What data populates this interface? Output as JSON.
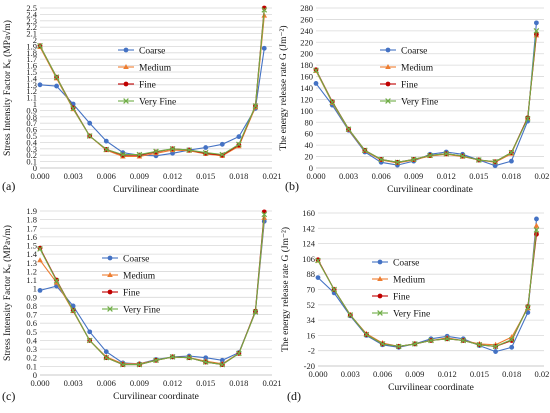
{
  "colors": {
    "Coarse": "#4472c4",
    "Medium": "#ed7d31",
    "Fine": "#c00000",
    "Very Fine": "#70ad47",
    "grid": "#d9d9d9"
  },
  "chart_data": [
    {
      "type": "line",
      "panel_label": "(a)",
      "xlabel": "Curvilinear coordinate",
      "ylabel": "Stress Intensity Factor Kₑ (MPa√m)",
      "xlim": [
        0,
        0.021
      ],
      "ylim": [
        0,
        2.5
      ],
      "xticks": [
        "0.000",
        "0.003",
        "0.006",
        "0.009",
        "0.012",
        "0.015",
        "0.018",
        "0.021"
      ],
      "yticks": [
        "0",
        "0.1",
        "0.2",
        "0.3",
        "0.4",
        "0.5",
        "0.6",
        "0.7",
        "0.8",
        "0.9",
        "1",
        "1.1",
        "1.2",
        "1.3",
        "1.4",
        "1.5",
        "1.6",
        "1.7",
        "1.8",
        "1.9",
        "2",
        "2.1",
        "2.2",
        "2.3",
        "2.4",
        "2.5"
      ],
      "grid": "horizontal",
      "legend_position": "center-right",
      "series": [
        {
          "name": "Coarse",
          "x": [
            0.0,
            0.0015,
            0.003,
            0.0045,
            0.006,
            0.0075,
            0.009,
            0.0105,
            0.012,
            0.0135,
            0.015,
            0.0165,
            0.018,
            0.0195,
            0.0203
          ],
          "values": [
            1.3,
            1.28,
            1.0,
            0.7,
            0.42,
            0.24,
            0.2,
            0.19,
            0.23,
            0.28,
            0.32,
            0.37,
            0.49,
            0.93,
            1.87
          ]
        },
        {
          "name": "Medium",
          "x": [
            0.0,
            0.0015,
            0.003,
            0.0045,
            0.006,
            0.0075,
            0.009,
            0.0105,
            0.012,
            0.0135,
            0.015,
            0.0165,
            0.018,
            0.0195,
            0.0203
          ],
          "values": [
            1.89,
            1.4,
            0.92,
            0.5,
            0.28,
            0.18,
            0.18,
            0.23,
            0.28,
            0.27,
            0.22,
            0.19,
            0.34,
            0.95,
            2.38
          ]
        },
        {
          "name": "Fine",
          "x": [
            0.0,
            0.0015,
            0.003,
            0.0045,
            0.006,
            0.0075,
            0.009,
            0.0105,
            0.012,
            0.0135,
            0.015,
            0.0165,
            0.018,
            0.0195,
            0.0203
          ],
          "values": [
            1.91,
            1.42,
            0.94,
            0.5,
            0.29,
            0.2,
            0.2,
            0.25,
            0.3,
            0.28,
            0.23,
            0.2,
            0.36,
            0.97,
            2.5
          ]
        },
        {
          "name": "Very Fine",
          "x": [
            0.0,
            0.0015,
            0.003,
            0.0045,
            0.006,
            0.0075,
            0.009,
            0.0105,
            0.012,
            0.0135,
            0.015,
            0.0165,
            0.018,
            0.0195,
            0.0203
          ],
          "values": [
            1.91,
            1.42,
            0.93,
            0.5,
            0.29,
            0.21,
            0.21,
            0.26,
            0.3,
            0.28,
            0.24,
            0.21,
            0.37,
            0.97,
            2.47
          ]
        }
      ]
    },
    {
      "type": "line",
      "panel_label": "(b)",
      "xlabel": "Curvilinear coordinate",
      "ylabel": "The energy release rate G (Jm⁻²)",
      "xlim": [
        0,
        0.021
      ],
      "ylim": [
        0,
        280
      ],
      "xticks": [
        "0.000",
        "0.003",
        "0.006",
        "0.009",
        "0.012",
        "0.015",
        "0.018",
        "0.021"
      ],
      "yticks": [
        "0",
        "20",
        "40",
        "60",
        "80",
        "100",
        "120",
        "140",
        "160",
        "180",
        "200",
        "220",
        "240",
        "260",
        "280"
      ],
      "grid": "horizontal",
      "legend_position": "top-center",
      "series": [
        {
          "name": "Coarse",
          "x": [
            0.0,
            0.0015,
            0.003,
            0.0045,
            0.006,
            0.0075,
            0.009,
            0.0105,
            0.012,
            0.0135,
            0.015,
            0.0165,
            0.018,
            0.0195,
            0.0203
          ],
          "values": [
            148,
            110,
            66,
            28,
            10,
            5,
            12,
            24,
            28,
            24,
            14,
            4,
            12,
            82,
            254
          ]
        },
        {
          "name": "Medium",
          "x": [
            0.0,
            0.0015,
            0.003,
            0.0045,
            0.006,
            0.0075,
            0.009,
            0.0105,
            0.012,
            0.0135,
            0.015,
            0.0165,
            0.018,
            0.0195,
            0.0203
          ],
          "values": [
            170,
            114,
            67,
            30,
            14,
            9,
            14,
            21,
            24,
            20,
            14,
            10,
            25,
            88,
            232
          ]
        },
        {
          "name": "Fine",
          "x": [
            0.0,
            0.0015,
            0.003,
            0.0045,
            0.006,
            0.0075,
            0.009,
            0.0105,
            0.012,
            0.0135,
            0.015,
            0.0165,
            0.018,
            0.0195,
            0.0203
          ],
          "values": [
            172,
            116,
            68,
            31,
            15,
            10,
            15,
            22,
            25,
            21,
            14,
            11,
            27,
            88,
            234
          ]
        },
        {
          "name": "Very Fine",
          "x": [
            0.0,
            0.0015,
            0.003,
            0.0045,
            0.006,
            0.0075,
            0.009,
            0.0105,
            0.012,
            0.0135,
            0.015,
            0.0165,
            0.018,
            0.0195,
            0.0203
          ],
          "values": [
            171,
            115,
            68,
            31,
            15,
            10,
            15,
            22,
            25,
            21,
            14,
            11,
            27,
            86,
            240
          ]
        }
      ]
    },
    {
      "type": "line",
      "panel_label": "(c)",
      "xlabel": "Curvilinear coordinate",
      "ylabel": "Stress Intensity Factor Kₑ (MPa√m)",
      "xlim": [
        0,
        0.021
      ],
      "ylim": [
        0,
        1.9
      ],
      "xticks": [
        "0.000",
        "0.003",
        "0.006",
        "0.009",
        "0.012",
        "0.015",
        "0.018",
        "0.021"
      ],
      "yticks": [
        "0",
        "0.1",
        "0.2",
        "0.3",
        "0.4",
        "0.5",
        "0.6",
        "0.7",
        "0.8",
        "0.9",
        "1",
        "1.1",
        "1.2",
        "1.3",
        "1.4",
        "1.5",
        "1.6",
        "1.7",
        "1.8",
        "1.9"
      ],
      "grid": "horizontal",
      "legend_position": "top-center",
      "series": [
        {
          "name": "Coarse",
          "x": [
            0.0,
            0.0015,
            0.003,
            0.0045,
            0.006,
            0.0075,
            0.009,
            0.0105,
            0.012,
            0.0135,
            0.015,
            0.0165,
            0.018,
            0.0195,
            0.0203
          ],
          "values": [
            0.98,
            1.03,
            0.8,
            0.5,
            0.27,
            0.14,
            0.13,
            0.18,
            0.21,
            0.22,
            0.2,
            0.17,
            0.26,
            0.73,
            1.78
          ]
        },
        {
          "name": "Medium",
          "x": [
            0.0,
            0.0015,
            0.003,
            0.0045,
            0.006,
            0.0075,
            0.009,
            0.0105,
            0.012,
            0.0135,
            0.015,
            0.0165,
            0.018,
            0.0195,
            0.0203
          ],
          "values": [
            1.33,
            1.07,
            0.74,
            0.4,
            0.21,
            0.13,
            0.13,
            0.17,
            0.21,
            0.2,
            0.16,
            0.13,
            0.25,
            0.73,
            1.82
          ]
        },
        {
          "name": "Fine",
          "x": [
            0.0,
            0.0015,
            0.003,
            0.0045,
            0.006,
            0.0075,
            0.009,
            0.0105,
            0.012,
            0.0135,
            0.015,
            0.0165,
            0.018,
            0.0195,
            0.0203
          ],
          "values": [
            1.47,
            1.1,
            0.75,
            0.4,
            0.2,
            0.12,
            0.12,
            0.17,
            0.21,
            0.2,
            0.15,
            0.12,
            0.25,
            0.74,
            1.89
          ]
        },
        {
          "name": "Very Fine",
          "x": [
            0.0,
            0.0015,
            0.003,
            0.0045,
            0.006,
            0.0075,
            0.009,
            0.0105,
            0.012,
            0.0135,
            0.015,
            0.0165,
            0.018,
            0.0195,
            0.0203
          ],
          "values": [
            1.46,
            1.09,
            0.75,
            0.4,
            0.2,
            0.12,
            0.12,
            0.17,
            0.21,
            0.2,
            0.15,
            0.12,
            0.25,
            0.73,
            1.86
          ]
        }
      ]
    },
    {
      "type": "line",
      "panel_label": "(d)",
      "xlabel": "Curvilinear coordinate",
      "ylabel": "The energy release rate G (Jm⁻²)",
      "xlim": [
        0,
        0.021
      ],
      "ylim": [
        -20,
        160
      ],
      "xticks": [
        "0.000",
        "0.003",
        "0.006",
        "0.009",
        "0.012",
        "0.015",
        "0.018",
        "0.021"
      ],
      "yticks": [
        "-20",
        "-2",
        "16",
        "34",
        "52",
        "70",
        "88",
        "106",
        "124",
        "142",
        "160"
      ],
      "grid": "horizontal",
      "legend_position": "top-center",
      "series": [
        {
          "name": "Coarse",
          "x": [
            0.0,
            0.0015,
            0.003,
            0.0045,
            0.006,
            0.0075,
            0.009,
            0.0105,
            0.012,
            0.0135,
            0.015,
            0.0165,
            0.018,
            0.0195,
            0.0203
          ],
          "values": [
            84,
            66,
            39,
            16,
            5,
            2,
            6,
            12,
            15,
            12,
            4,
            -3,
            2,
            43,
            153
          ]
        },
        {
          "name": "Medium",
          "x": [
            0.0,
            0.0015,
            0.003,
            0.0045,
            0.006,
            0.0075,
            0.009,
            0.0105,
            0.012,
            0.0135,
            0.015,
            0.0165,
            0.018,
            0.0195,
            0.0203
          ],
          "values": [
            104,
            70,
            40,
            18,
            7,
            3,
            6,
            10,
            13,
            10,
            6,
            5,
            14,
            48,
            145
          ]
        },
        {
          "name": "Fine",
          "x": [
            0.0,
            0.0015,
            0.003,
            0.0045,
            0.006,
            0.0075,
            0.009,
            0.0105,
            0.012,
            0.0135,
            0.015,
            0.0165,
            0.018,
            0.0195,
            0.0203
          ],
          "values": [
            105,
            70,
            40,
            17,
            6,
            3,
            6,
            10,
            12,
            10,
            5,
            3,
            10,
            50,
            135
          ]
        },
        {
          "name": "Very Fine",
          "x": [
            0.0,
            0.0015,
            0.003,
            0.0045,
            0.006,
            0.0075,
            0.009,
            0.0105,
            0.012,
            0.0135,
            0.015,
            0.0165,
            0.018,
            0.0195,
            0.0203
          ],
          "values": [
            104,
            70,
            40,
            17,
            6,
            3,
            6,
            10,
            12,
            10,
            5,
            3,
            11,
            49,
            140
          ]
        }
      ]
    }
  ]
}
